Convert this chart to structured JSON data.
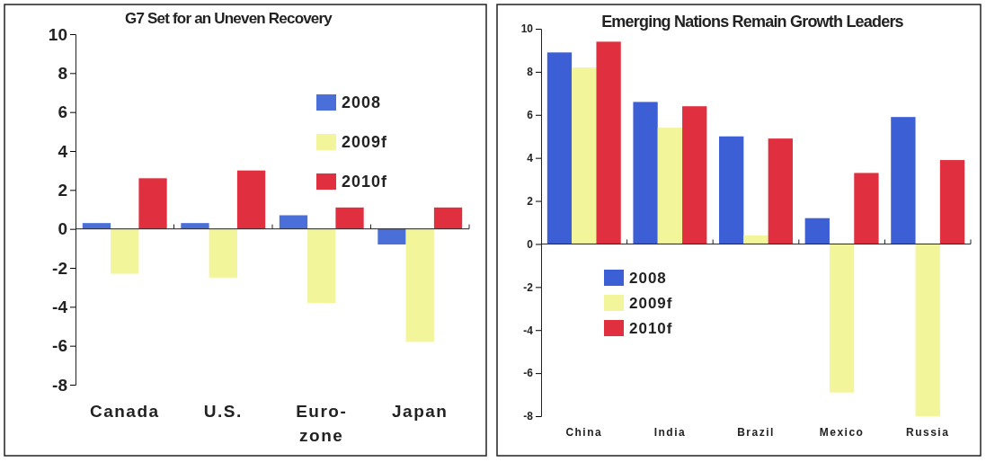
{
  "chart_data": [
    {
      "type": "bar",
      "title": "G7 Set for an Uneven Recovery",
      "categories": [
        "Canada",
        "U.S.",
        "Euro-\nzone",
        "Japan"
      ],
      "series": [
        {
          "name": "2008",
          "color": "#4a6fd8",
          "values": [
            0.3,
            0.3,
            0.7,
            -0.8
          ]
        },
        {
          "name": "2009f",
          "color": "#f2f59a",
          "values": [
            -2.3,
            -2.5,
            -3.8,
            -5.8
          ]
        },
        {
          "name": "2010f",
          "color": "#e0303f",
          "values": [
            2.6,
            3.0,
            1.1,
            1.1
          ]
        }
      ],
      "ylim": [
        -8,
        10
      ],
      "yticks": [
        -8,
        -6,
        -4,
        -2,
        0,
        2,
        4,
        6,
        8,
        10
      ],
      "legend": "top right"
    },
    {
      "type": "bar",
      "title": "Emerging Nations Remain Growth Leaders",
      "categories": [
        "China",
        "India",
        "Brazil",
        "Mexico",
        "Russia"
      ],
      "series": [
        {
          "name": "2008",
          "color": "#3d5fd6",
          "values": [
            8.9,
            6.6,
            5.0,
            1.2,
            5.9
          ]
        },
        {
          "name": "2009f",
          "color": "#f2f59a",
          "values": [
            8.2,
            5.4,
            0.4,
            -6.9,
            -8.0
          ]
        },
        {
          "name": "2010f",
          "color": "#e0303f",
          "values": [
            9.4,
            6.4,
            4.9,
            3.3,
            3.9
          ]
        }
      ],
      "ylim": [
        -8,
        10
      ],
      "yticks": [
        -8,
        -6,
        -4,
        -2,
        0,
        2,
        4,
        6,
        8,
        10
      ],
      "legend": "bottom left"
    }
  ]
}
